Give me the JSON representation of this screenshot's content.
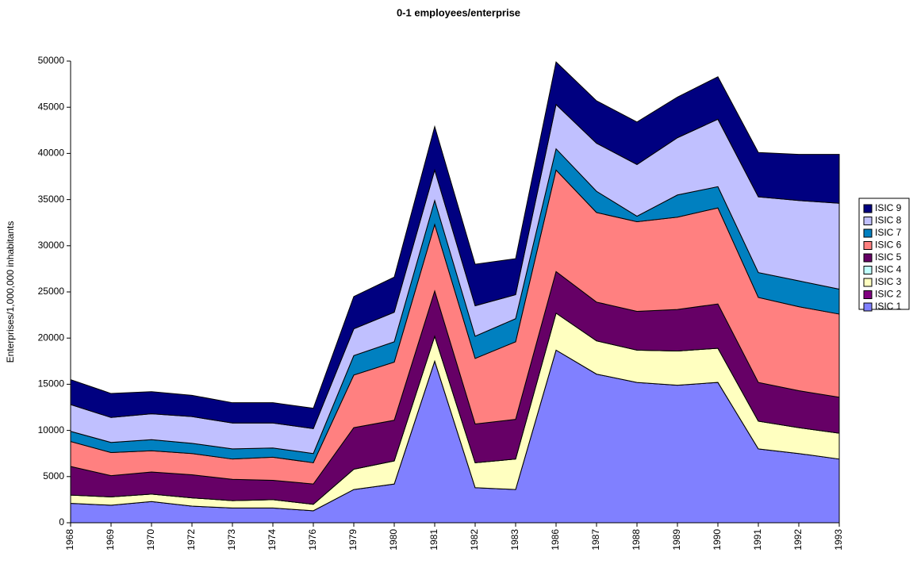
{
  "chart_data": {
    "type": "stacked_area",
    "title": "0-1 employees/enterprise",
    "y_label": "Enterprises/1,000,000 inhabitants",
    "categories": [
      "1968",
      "1969",
      "1970",
      "1972",
      "1973",
      "1974",
      "1976",
      "1979",
      "1980",
      "1981",
      "1982",
      "1983",
      "1986",
      "1987",
      "1988",
      "1989",
      "1990",
      "1991",
      "1992",
      "1993"
    ],
    "series": [
      {
        "name": "ISIC 1",
        "color": "#8080ff",
        "values": [
          2100,
          1900,
          2300,
          1800,
          1600,
          1600,
          1300,
          3600,
          4200,
          17500,
          3800,
          3600,
          18700,
          16100,
          15200,
          14900,
          15200,
          8000,
          7500,
          6900
        ]
      },
      {
        "name": "ISIC 2",
        "color": "#800080",
        "values": [
          0,
          0,
          0,
          0,
          0,
          0,
          0,
          0,
          0,
          0,
          0,
          0,
          0,
          0,
          0,
          0,
          0,
          0,
          0,
          0
        ]
      },
      {
        "name": "ISIC 3",
        "color": "#ffffc0",
        "values": [
          900,
          900,
          800,
          900,
          800,
          900,
          700,
          2200,
          2500,
          2700,
          2700,
          3300,
          4000,
          3600,
          3500,
          3700,
          3700,
          3000,
          2800,
          2800
        ]
      },
      {
        "name": "ISIC 4",
        "color": "#c0ffff",
        "values": [
          0,
          0,
          0,
          0,
          0,
          0,
          0,
          0,
          0,
          0,
          0,
          0,
          0,
          0,
          0,
          0,
          0,
          0,
          0,
          0
        ]
      },
      {
        "name": "ISIC 5",
        "color": "#660066",
        "values": [
          3100,
          2300,
          2400,
          2500,
          2300,
          2100,
          2200,
          4500,
          4400,
          4900,
          4200,
          4300,
          4500,
          4200,
          4200,
          4500,
          4800,
          4200,
          4000,
          3900
        ]
      },
      {
        "name": "ISIC 6",
        "color": "#ff8080",
        "values": [
          2700,
          2500,
          2300,
          2300,
          2200,
          2500,
          2300,
          5700,
          6300,
          7200,
          7100,
          8400,
          11000,
          9700,
          9700,
          10000,
          10400,
          9200,
          9100,
          9000
        ]
      },
      {
        "name": "ISIC 7",
        "color": "#0080c0",
        "values": [
          1100,
          1100,
          1200,
          1100,
          1100,
          1000,
          1000,
          2100,
          2200,
          2600,
          2400,
          2500,
          2300,
          2300,
          600,
          2400,
          2300,
          2700,
          2800,
          2700
        ]
      },
      {
        "name": "ISIC 8",
        "color": "#c0c0ff",
        "values": [
          2900,
          2700,
          2800,
          2900,
          2800,
          2700,
          2700,
          2900,
          3200,
          3300,
          3300,
          2600,
          4800,
          5200,
          5600,
          6200,
          7300,
          8200,
          8700,
          9300
        ]
      },
      {
        "name": "ISIC 9",
        "color": "#000080",
        "values": [
          2700,
          2600,
          2400,
          2300,
          2200,
          2200,
          2200,
          3500,
          3800,
          4700,
          4500,
          3900,
          4600,
          4600,
          4600,
          4400,
          4600,
          4800,
          5000,
          5300
        ]
      }
    ],
    "ylim": [
      0,
      50000
    ],
    "yticks": [
      0,
      5000,
      10000,
      15000,
      20000,
      25000,
      30000,
      35000,
      40000,
      45000,
      50000
    ],
    "legend": "right"
  }
}
